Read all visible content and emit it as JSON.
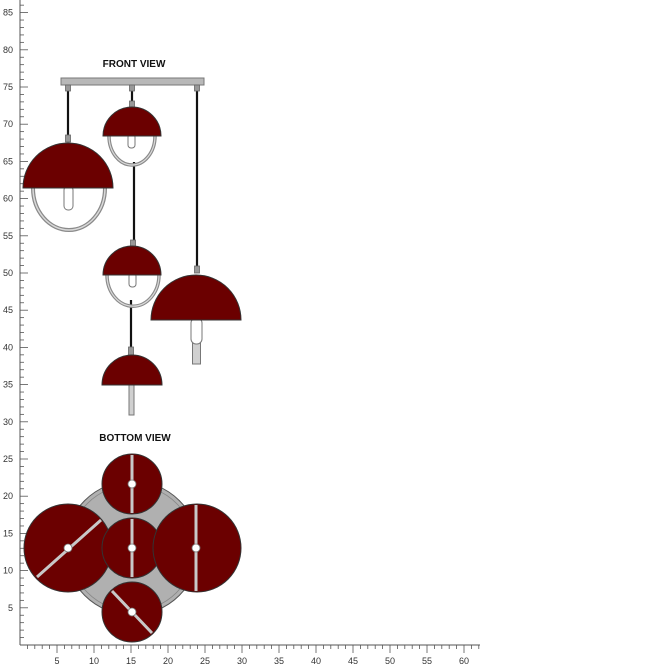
{
  "front_view": {
    "title": "FRONT VIEW",
    "shade_color": "#6b0000",
    "canopy_color": "#b8b8b8",
    "pendants": [
      {
        "name": "large-dome-left",
        "type": "dome",
        "drop_to": 64
      },
      {
        "name": "small-dome-top",
        "type": "dome",
        "drop_to": 71
      },
      {
        "name": "small-dome-middle",
        "type": "dome",
        "drop_to": 52
      },
      {
        "name": "large-dome-right",
        "type": "dome",
        "drop_to": 46
      },
      {
        "name": "small-dome-bottom",
        "type": "dome",
        "drop_to": 37
      }
    ]
  },
  "bottom_view": {
    "title": "BOTTOM VIEW",
    "base_color": "#b0b0b0",
    "shade_color": "#6b0000"
  },
  "ruler": {
    "vertical_labels": [
      "85",
      "80",
      "75",
      "70",
      "65",
      "60",
      "55",
      "50",
      "45",
      "40",
      "35",
      "30",
      "25",
      "20",
      "15",
      "10",
      "5"
    ],
    "horizontal_labels": [
      "5",
      "10",
      "15",
      "20",
      "25",
      "30",
      "35",
      "40",
      "45",
      "50",
      "55",
      "60"
    ]
  }
}
